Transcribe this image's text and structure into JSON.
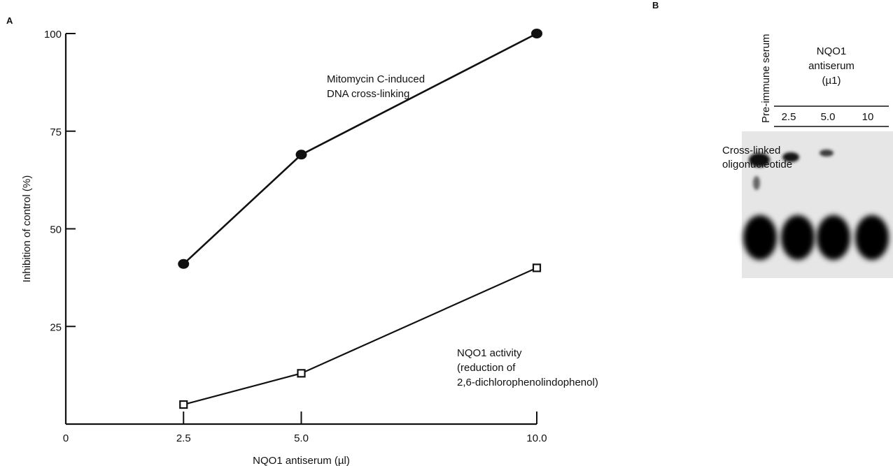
{
  "panel_a": {
    "letter": "A"
  },
  "panel_b": {
    "letter": "B",
    "preimmune_label": "Pre-immune serum",
    "antiserum_header": [
      "NQO1",
      "antiserum",
      "(µ1)"
    ],
    "lanes": [
      "2.5",
      "5.0",
      "10"
    ],
    "band_label": [
      "Cross-linked",
      "oligonucleotide"
    ]
  },
  "chart_data": {
    "type": "line",
    "title": "",
    "xlabel": "NQO1 antiserum (µl)",
    "ylabel": "Inhibition of control (%)",
    "xlim": [
      0,
      10.0
    ],
    "ylim": [
      0,
      100
    ],
    "x_ticks": [
      "0",
      "2.5",
      "5.0",
      "10.0"
    ],
    "y_ticks": [
      "25",
      "50",
      "75",
      "100"
    ],
    "grid": false,
    "series": [
      {
        "name": "Mitomycin C-induced DNA cross-linking",
        "label_lines": [
          "Mitomycin C-induced",
          "DNA cross-linking"
        ],
        "marker": "filled-circle",
        "x": [
          2.5,
          5.0,
          10.0
        ],
        "y": [
          41,
          69,
          100
        ]
      },
      {
        "name": "NQO1 activity (reduction of 2,6-dichlorophenolindophenol)",
        "label_lines": [
          "NQO1 activity",
          "(reduction of",
          "2,6-dichlorophenolindophenol)"
        ],
        "marker": "open-square",
        "x": [
          2.5,
          5.0,
          10.0
        ],
        "y": [
          5,
          13,
          40
        ]
      }
    ]
  }
}
